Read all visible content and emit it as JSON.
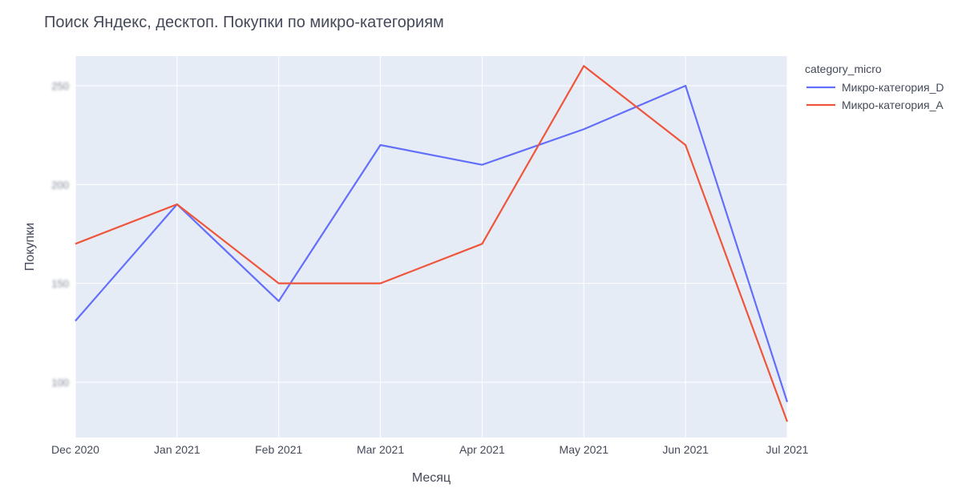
{
  "chart_data": {
    "type": "line",
    "title": "Поиск Яндекс, десктоп. Покупки по микро-категориям",
    "xlabel": "Месяц",
    "ylabel": "Покупки",
    "categories": [
      "Dec 2020",
      "Jan 2021",
      "Feb 2021",
      "Mar 2021",
      "Apr 2021",
      "May 2021",
      "Jun 2021",
      "Jul 2021"
    ],
    "y_ticks": [
      "100",
      "150",
      "200",
      "250"
    ],
    "ylim": [
      72,
      265
    ],
    "grid": true,
    "legend": {
      "title": "category_micro",
      "position": "top-right"
    },
    "series": [
      {
        "name": "Микро-категория_D",
        "color": "#636efa",
        "values": [
          131,
          190,
          141,
          220,
          210,
          228,
          250,
          90
        ]
      },
      {
        "name": "Микро-категория_A",
        "color": "#ef553b",
        "values": [
          170,
          190,
          150,
          150,
          170,
          260,
          220,
          80
        ]
      }
    ],
    "colors": {
      "plot_bg": "#e5ecf6",
      "grid": "#ffffff",
      "text": "#444a5a"
    }
  }
}
